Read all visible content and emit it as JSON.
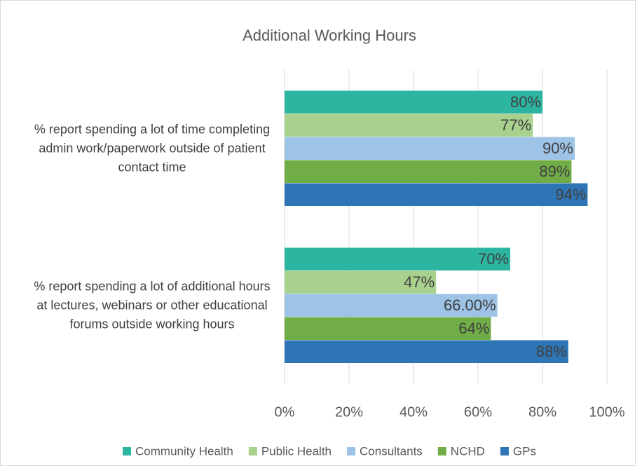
{
  "chart_data": {
    "type": "bar",
    "orientation": "horizontal",
    "title": "Additional Working Hours",
    "categories": [
      "% report spending a lot of time completing admin work/paperwork outside of patient contact time",
      "% report spending a lot of additional hours at lectures, webinars or other educational forums outside working hours"
    ],
    "series": [
      {
        "name": "Community Health",
        "color": "#2cb5a1",
        "values": [
          80,
          70
        ],
        "value_labels": [
          "80%",
          "70%"
        ]
      },
      {
        "name": "Public Health",
        "color": "#a9d18e",
        "values": [
          77,
          47
        ],
        "value_labels": [
          "77%",
          "47%"
        ]
      },
      {
        "name": "Consultants",
        "color": "#9dc3e6",
        "values": [
          90,
          66
        ],
        "value_labels": [
          "90%",
          "66.00%"
        ]
      },
      {
        "name": "NCHD",
        "color": "#70ad47",
        "values": [
          89,
          64
        ],
        "value_labels": [
          "89%",
          "64%"
        ]
      },
      {
        "name": "GPs",
        "color": "#2e75b6",
        "values": [
          94,
          88
        ],
        "value_labels": [
          "94%",
          "88%"
        ]
      }
    ],
    "xlim": [
      0,
      100
    ],
    "xticks": [
      {
        "value": 0,
        "label": "0%"
      },
      {
        "value": 20,
        "label": "20%"
      },
      {
        "value": 40,
        "label": "40%"
      },
      {
        "value": 60,
        "label": "60%"
      },
      {
        "value": 80,
        "label": "80%"
      },
      {
        "value": 100,
        "label": "100%"
      }
    ],
    "grid": true,
    "legend": "bottom"
  }
}
